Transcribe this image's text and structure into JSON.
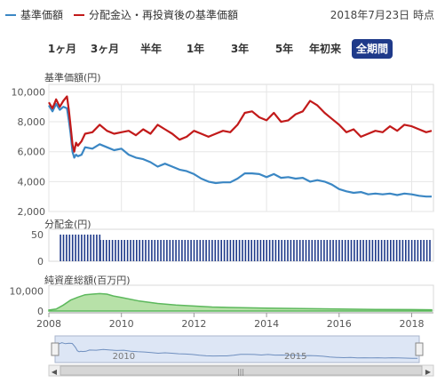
{
  "header": {
    "legend": [
      {
        "label": "基準価額",
        "color": "#3b87c4"
      },
      {
        "label": "分配金込・再投資後の基準価額",
        "color": "#c21a1a"
      }
    ],
    "as_of": "2018年7月23日 時点"
  },
  "range_buttons": [
    {
      "label": "1ヶ月",
      "active": false
    },
    {
      "label": "3ヶ月",
      "active": false
    },
    {
      "label": "半年",
      "active": false
    },
    {
      "label": "1年",
      "active": false
    },
    {
      "label": "3年",
      "active": false
    },
    {
      "label": "5年",
      "active": false
    },
    {
      "label": "年初来",
      "active": false
    },
    {
      "label": "全期間",
      "active": true
    }
  ],
  "chart_data": [
    {
      "type": "line",
      "title": "基準価額(円)",
      "x_range": [
        2008.0,
        2018.6
      ],
      "ylim": [
        2000,
        10500
      ],
      "y_ticks": [
        2000,
        4000,
        6000,
        8000,
        10000
      ],
      "y_tick_labels": [
        "2,000",
        "4,000",
        "6,000",
        "8,000",
        "10,000"
      ],
      "grid": true,
      "series": [
        {
          "name": "基準価額",
          "color": "#3b87c4",
          "x": [
            2008.0,
            2008.1,
            2008.2,
            2008.3,
            2008.4,
            2008.5,
            2008.55,
            2008.6,
            2008.65,
            2008.7,
            2008.75,
            2008.8,
            2008.9,
            2009.0,
            2009.2,
            2009.4,
            2009.6,
            2009.8,
            2010.0,
            2010.2,
            2010.4,
            2010.6,
            2010.8,
            2011.0,
            2011.2,
            2011.4,
            2011.6,
            2011.8,
            2012.0,
            2012.2,
            2012.4,
            2012.6,
            2012.8,
            2013.0,
            2013.2,
            2013.4,
            2013.6,
            2013.8,
            2014.0,
            2014.2,
            2014.4,
            2014.6,
            2014.8,
            2015.0,
            2015.2,
            2015.4,
            2015.6,
            2015.8,
            2016.0,
            2016.2,
            2016.4,
            2016.6,
            2016.8,
            2017.0,
            2017.2,
            2017.4,
            2017.6,
            2017.8,
            2018.0,
            2018.2,
            2018.4,
            2018.55
          ],
          "y": [
            9100,
            8700,
            9200,
            8800,
            9000,
            8900,
            8100,
            7200,
            6000,
            5600,
            5800,
            5700,
            5800,
            6300,
            6200,
            6500,
            6300,
            6100,
            6200,
            5800,
            5600,
            5500,
            5300,
            5000,
            5200,
            5000,
            4800,
            4700,
            4500,
            4200,
            4000,
            3900,
            3950,
            3950,
            4200,
            4550,
            4550,
            4500,
            4300,
            4500,
            4250,
            4300,
            4200,
            4250,
            4000,
            4100,
            4000,
            3800,
            3500,
            3350,
            3250,
            3300,
            3150,
            3200,
            3150,
            3200,
            3100,
            3200,
            3150,
            3050,
            3000,
            3000
          ]
        },
        {
          "name": "分配金込・再投資後の基準価額",
          "color": "#c21a1a",
          "x": [
            2008.0,
            2008.1,
            2008.2,
            2008.3,
            2008.4,
            2008.5,
            2008.55,
            2008.6,
            2008.65,
            2008.7,
            2008.75,
            2008.8,
            2008.9,
            2009.0,
            2009.2,
            2009.4,
            2009.6,
            2009.8,
            2010.0,
            2010.2,
            2010.4,
            2010.6,
            2010.8,
            2011.0,
            2011.2,
            2011.4,
            2011.6,
            2011.8,
            2012.0,
            2012.2,
            2012.4,
            2012.6,
            2012.8,
            2013.0,
            2013.2,
            2013.4,
            2013.6,
            2013.8,
            2014.0,
            2014.2,
            2014.4,
            2014.6,
            2014.8,
            2015.0,
            2015.2,
            2015.4,
            2015.6,
            2015.8,
            2016.0,
            2016.2,
            2016.4,
            2016.6,
            2016.8,
            2017.0,
            2017.2,
            2017.4,
            2017.6,
            2017.8,
            2018.0,
            2018.2,
            2018.4,
            2018.55
          ],
          "y": [
            9300,
            8900,
            9500,
            9000,
            9400,
            9700,
            8800,
            7700,
            6500,
            6000,
            6600,
            6400,
            6700,
            7200,
            7300,
            7800,
            7400,
            7200,
            7300,
            7400,
            7100,
            7500,
            7200,
            7800,
            7500,
            7200,
            6800,
            7000,
            7400,
            7200,
            7000,
            7200,
            7400,
            7300,
            7800,
            8600,
            8700,
            8300,
            8100,
            8600,
            8000,
            8100,
            8500,
            8700,
            9400,
            9100,
            8600,
            8200,
            7800,
            7300,
            7500,
            7000,
            7200,
            7400,
            7300,
            7700,
            7400,
            7800,
            7700,
            7500,
            7300,
            7400
          ]
        }
      ]
    },
    {
      "type": "bar",
      "title": "分配金(円)",
      "x_range": [
        2008.0,
        2018.6
      ],
      "ylim": [
        0,
        60
      ],
      "y_ticks": [
        0,
        50
      ],
      "y_tick_labels": [
        "0",
        "50"
      ],
      "series": [
        {
          "name": "",
          "color": "#1f3a8a",
          "segments": [
            {
              "x_start": 2008.3,
              "x_end": 2009.4,
              "value": 50
            },
            {
              "x_start": 2009.4,
              "x_end": 2018.55,
              "value": 40
            }
          ]
        }
      ]
    },
    {
      "type": "area",
      "title": "純資産総額(百万円)",
      "x_range": [
        2008.0,
        2018.6
      ],
      "ylim": [
        0,
        13000
      ],
      "y_ticks": [
        0,
        10000
      ],
      "y_tick_labels": [
        "0",
        "10,000"
      ],
      "series": [
        {
          "name": "",
          "color": "#5cb85c",
          "x": [
            2008.0,
            2008.2,
            2008.4,
            2008.6,
            2008.8,
            2009.0,
            2009.2,
            2009.4,
            2009.6,
            2009.8,
            2010.0,
            2010.5,
            2011.0,
            2011.5,
            2012.0,
            2012.5,
            2013.0,
            2014.0,
            2015.0,
            2016.0,
            2017.0,
            2018.0,
            2018.55
          ],
          "y": [
            500,
            1000,
            3000,
            5500,
            7000,
            8200,
            8500,
            8800,
            8500,
            7500,
            6800,
            5000,
            3800,
            3000,
            2500,
            2000,
            1800,
            1500,
            1200,
            1000,
            800,
            700,
            650
          ]
        }
      ]
    }
  ],
  "x_axis": {
    "ticks": [
      2008,
      2010,
      2012,
      2014,
      2016,
      2018
    ],
    "tick_labels": [
      "2008",
      "2010",
      "2012",
      "2014",
      "2016",
      "2018"
    ]
  },
  "navigator": {
    "tick_labels": [
      "2010",
      "2015"
    ],
    "tick_values": [
      2010,
      2015
    ],
    "left_arrow": "◀",
    "right_arrow": "▶",
    "scroll_grip": "|||"
  }
}
